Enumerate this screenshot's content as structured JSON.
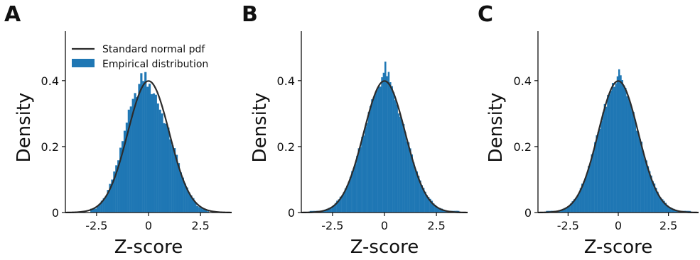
{
  "figure": {
    "legend": {
      "line_label": "Standard normal pdf",
      "bar_label": "Empirical distribution"
    }
  },
  "colors": {
    "hist": "#1f77b4",
    "pdf": "#2b2b2b",
    "axis": "#111111"
  },
  "chart_data": [
    {
      "panel": "A",
      "type": "bar",
      "subtype": "histogram-with-pdf-overlay",
      "xlabel": "Z-score",
      "ylabel": "Density",
      "xlim": [
        -4,
        4
      ],
      "ylim": [
        0,
        0.55
      ],
      "xticks": [
        -2.5,
        0,
        2.5
      ],
      "xtick_labels": [
        "-2.5",
        "0",
        "2.5"
      ],
      "yticks": [
        0,
        0.2,
        0.4
      ],
      "ytick_labels": [
        "0",
        "0.2",
        "0.4"
      ],
      "bin_width": 0.1,
      "hist_range": [
        -2.8,
        2.9
      ],
      "bins": [
        {
          "x": -2.55,
          "y": 0.012
        },
        {
          "x": -2.05,
          "y": 0.05
        },
        {
          "x": -1.45,
          "y": 0.16
        },
        {
          "x": -1.05,
          "y": 0.28
        },
        {
          "x": -0.65,
          "y": 0.35
        },
        {
          "x": -0.5,
          "y": 0.375
        },
        {
          "x": -0.35,
          "y": 0.405
        },
        {
          "x": -0.15,
          "y": 0.415
        },
        {
          "x": 0.05,
          "y": 0.375
        },
        {
          "x": 0.3,
          "y": 0.365
        },
        {
          "x": 0.55,
          "y": 0.315
        },
        {
          "x": 0.85,
          "y": 0.265
        },
        {
          "x": 1.25,
          "y": 0.19
        },
        {
          "x": 1.75,
          "y": 0.085
        },
        {
          "x": 2.35,
          "y": 0.02
        },
        {
          "x": 2.85,
          "y": 0.004
        }
      ],
      "series": [
        {
          "name": "Empirical distribution",
          "kind": "histogram"
        },
        {
          "name": "Standard normal pdf",
          "kind": "line",
          "mean": 0,
          "sd": 1
        }
      ],
      "legend": "upper-left",
      "grid": false
    },
    {
      "panel": "B",
      "type": "bar",
      "subtype": "histogram-with-pdf-overlay",
      "xlabel": "Z-score",
      "ylabel": "Density",
      "xlim": [
        -4,
        4
      ],
      "ylim": [
        0,
        0.55
      ],
      "xticks": [
        -2.5,
        0,
        2.5
      ],
      "xtick_labels": [
        "-2.5",
        "0",
        "2.5"
      ],
      "yticks": [
        0,
        0.2,
        0.4
      ],
      "ytick_labels": [
        "0",
        "0.2",
        "0.4"
      ],
      "bin_width": 0.08,
      "hist_range": [
        -3.6,
        3.6
      ],
      "bins": [
        {
          "x": -3.0,
          "y": 0.005
        },
        {
          "x": -2.5,
          "y": 0.018
        },
        {
          "x": -2.0,
          "y": 0.055
        },
        {
          "x": -1.5,
          "y": 0.13
        },
        {
          "x": -1.0,
          "y": 0.245
        },
        {
          "x": -0.5,
          "y": 0.355
        },
        {
          "x": -0.15,
          "y": 0.405
        },
        {
          "x": 0.05,
          "y": 0.44
        },
        {
          "x": 0.3,
          "y": 0.385
        },
        {
          "x": 0.6,
          "y": 0.33
        },
        {
          "x": 1.0,
          "y": 0.24
        },
        {
          "x": 1.5,
          "y": 0.13
        },
        {
          "x": 2.0,
          "y": 0.055
        },
        {
          "x": 2.5,
          "y": 0.018
        },
        {
          "x": 3.0,
          "y": 0.005
        }
      ],
      "series": [
        {
          "name": "Empirical distribution",
          "kind": "histogram"
        },
        {
          "name": "Standard normal pdf",
          "kind": "line",
          "mean": 0,
          "sd": 1
        }
      ],
      "grid": false
    },
    {
      "panel": "C",
      "type": "bar",
      "subtype": "histogram-with-pdf-overlay",
      "xlabel": "Z-score",
      "ylabel": "Density",
      "xlim": [
        -4,
        4
      ],
      "ylim": [
        0,
        0.55
      ],
      "xticks": [
        -2.5,
        0,
        2.5
      ],
      "xtick_labels": [
        "-2.5",
        "0",
        "2.5"
      ],
      "yticks": [
        0,
        0.2,
        0.4
      ],
      "ytick_labels": [
        "0",
        "0.2",
        "0.4"
      ],
      "bin_width": 0.08,
      "hist_range": [
        -3.6,
        3.6
      ],
      "bins": [
        {
          "x": -3.0,
          "y": 0.005
        },
        {
          "x": -2.5,
          "y": 0.018
        },
        {
          "x": -2.0,
          "y": 0.055
        },
        {
          "x": -1.5,
          "y": 0.13
        },
        {
          "x": -1.0,
          "y": 0.245
        },
        {
          "x": -0.5,
          "y": 0.355
        },
        {
          "x": -0.15,
          "y": 0.405
        },
        {
          "x": 0.05,
          "y": 0.44
        },
        {
          "x": 0.3,
          "y": 0.385
        },
        {
          "x": 0.6,
          "y": 0.33
        },
        {
          "x": 1.0,
          "y": 0.24
        },
        {
          "x": 1.5,
          "y": 0.13
        },
        {
          "x": 2.0,
          "y": 0.055
        },
        {
          "x": 2.5,
          "y": 0.018
        },
        {
          "x": 3.0,
          "y": 0.005
        }
      ],
      "series": [
        {
          "name": "Empirical distribution",
          "kind": "histogram"
        },
        {
          "name": "Standard normal pdf",
          "kind": "line",
          "mean": 0,
          "sd": 1
        }
      ],
      "grid": false
    }
  ]
}
